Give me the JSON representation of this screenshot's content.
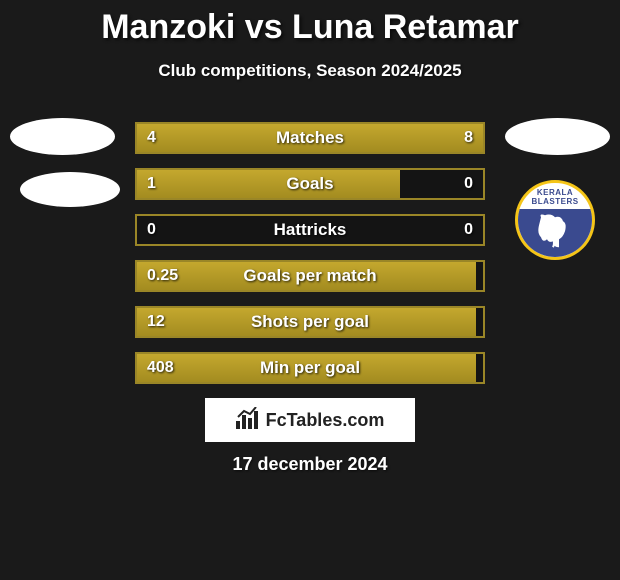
{
  "title": "Manzoki vs Luna Retamar",
  "subtitle": "Club competitions, Season 2024/2025",
  "footer_text": "FcTables.com",
  "date": "17 december 2024",
  "team_logo": {
    "line1": "KERALA",
    "line2": "BLASTERS",
    "ring_color": "#f5c518",
    "bg_color": "#3a4a8f"
  },
  "colors": {
    "page_bg": "#1a1a1a",
    "bar_border": "#9a8627",
    "bar_fill_top": "#c4a82e",
    "bar_fill_bottom": "#a38c20",
    "text": "#ffffff"
  },
  "bars": [
    {
      "label": "Matches",
      "left_val": "4",
      "right_val": "8",
      "left_pct": 33,
      "right_pct": 67
    },
    {
      "label": "Goals",
      "left_val": "1",
      "right_val": "0",
      "left_pct": 76,
      "right_pct": 0
    },
    {
      "label": "Hattricks",
      "left_val": "0",
      "right_val": "0",
      "left_pct": 0,
      "right_pct": 0
    },
    {
      "label": "Goals per match",
      "left_val": "0.25",
      "right_val": "",
      "left_pct": 98,
      "right_pct": 0
    },
    {
      "label": "Shots per goal",
      "left_val": "12",
      "right_val": "",
      "left_pct": 98,
      "right_pct": 0
    },
    {
      "label": "Min per goal",
      "left_val": "408",
      "right_val": "",
      "left_pct": 98,
      "right_pct": 0
    }
  ]
}
